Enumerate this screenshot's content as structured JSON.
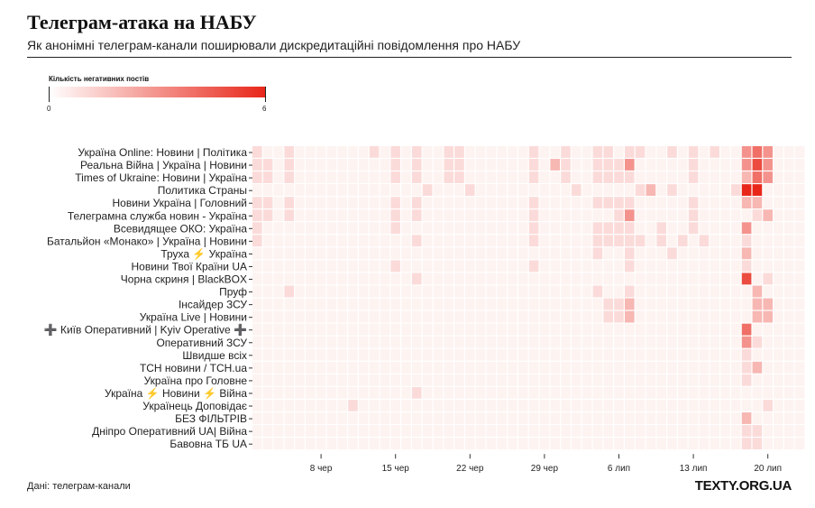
{
  "header": {
    "title": "Телеграм-атака на НАБУ",
    "subtitle": "Як анонімні телеграм-канали поширювали дискредитаційні повідомлення про НАБУ"
  },
  "legend": {
    "title": "Кількість негативних постів",
    "min_label": "0",
    "max_label": "6"
  },
  "footer": {
    "source": "Дані: телеграм-канали",
    "brand": "TEXTY.ORG.UA"
  },
  "colors": {
    "low": "#ffffff",
    "high": "#e8271a",
    "grid": "#ffffff"
  },
  "chart_data": {
    "type": "heatmap",
    "x": [
      "2 чер",
      "3 чер",
      "4 чер",
      "5 чер",
      "6 чер",
      "7 чер",
      "8 чер",
      "9 чер",
      "10 чер",
      "11 чер",
      "12 чер",
      "13 чер",
      "14 чер",
      "15 чер",
      "16 чер",
      "17 чер",
      "18 чер",
      "19 чер",
      "20 чер",
      "21 чер",
      "22 чер",
      "23 чер",
      "24 чер",
      "25 чер",
      "26 чер",
      "27 чер",
      "28 чер",
      "29 чер",
      "30 чер",
      "1 лип",
      "2 лип",
      "3 лип",
      "4 лип",
      "5 лип",
      "6 лип",
      "7 лип",
      "8 лип",
      "9 лип",
      "10 лип",
      "11 лип",
      "12 лип",
      "13 лип",
      "14 лип",
      "15 лип",
      "16 лип",
      "17 лип",
      "18 лип",
      "19 лип",
      "20 лип",
      "21 лип",
      "22 лип",
      "23 лип"
    ],
    "x_tick_labels": [
      "8 чер",
      "15 чер",
      "22 чер",
      "29 чер",
      "6 лип",
      "13 лип",
      "20 лип"
    ],
    "y": [
      "Україна Online: Новини | Політика",
      "Реальна Війна | Україна | Новини",
      "Times of Ukraine: Новини | Україна",
      "Политика Страны",
      "Новини Україна | Головний",
      "Телеграмна служба новин - Україна",
      "Всевидящее ОКО: Україна",
      "Батальйон «Монако» | Україна | Новини",
      "Труха ⚡ Україна",
      "Новини Твої Країни UA",
      "Чорна скриня | BlackBOX",
      "Пруф",
      "Інсайдер ЗСУ",
      "Україна Live | Новини",
      "➕ Київ Оперативний | Kyiv Operative ➕",
      "Оперативний ЗСУ",
      "Швидше всіх",
      "ТСН новини / TCH.ua",
      "Україна про Головне",
      "Україна ⚡ Новини ⚡ Війна",
      "Українець Доповідає",
      "БЕЗ ФІЛЬТРІВ",
      "Дніпро Оперативний UA| Війна",
      "Бавовна ТБ UA"
    ],
    "value_range": [
      0,
      6
    ],
    "cells": [
      [
        0,
        0,
        1
      ],
      [
        0,
        3,
        1
      ],
      [
        0,
        11,
        1
      ],
      [
        0,
        13,
        1
      ],
      [
        0,
        15,
        1
      ],
      [
        0,
        18,
        1
      ],
      [
        0,
        19,
        1
      ],
      [
        0,
        26,
        1
      ],
      [
        0,
        29,
        1
      ],
      [
        0,
        32,
        1
      ],
      [
        0,
        33,
        1
      ],
      [
        0,
        35,
        1
      ],
      [
        0,
        36,
        1
      ],
      [
        0,
        39,
        1
      ],
      [
        0,
        41,
        1
      ],
      [
        0,
        43,
        1
      ],
      [
        0,
        46,
        3
      ],
      [
        0,
        47,
        4
      ],
      [
        0,
        48,
        3
      ],
      [
        1,
        0,
        1
      ],
      [
        1,
        1,
        1
      ],
      [
        1,
        3,
        1
      ],
      [
        1,
        13,
        1
      ],
      [
        1,
        15,
        1
      ],
      [
        1,
        18,
        1
      ],
      [
        1,
        19,
        1
      ],
      [
        1,
        26,
        1
      ],
      [
        1,
        28,
        2
      ],
      [
        1,
        29,
        1
      ],
      [
        1,
        32,
        1
      ],
      [
        1,
        33,
        1
      ],
      [
        1,
        34,
        1
      ],
      [
        1,
        35,
        3
      ],
      [
        1,
        41,
        1
      ],
      [
        1,
        46,
        3
      ],
      [
        1,
        47,
        5
      ],
      [
        1,
        48,
        3
      ],
      [
        2,
        0,
        1
      ],
      [
        2,
        1,
        1
      ],
      [
        2,
        3,
        1
      ],
      [
        2,
        13,
        1
      ],
      [
        2,
        15,
        1
      ],
      [
        2,
        18,
        1
      ],
      [
        2,
        19,
        1
      ],
      [
        2,
        26,
        1
      ],
      [
        2,
        29,
        1
      ],
      [
        2,
        32,
        1
      ],
      [
        2,
        33,
        1
      ],
      [
        2,
        34,
        1
      ],
      [
        2,
        35,
        1
      ],
      [
        2,
        41,
        1
      ],
      [
        2,
        46,
        2
      ],
      [
        2,
        47,
        4
      ],
      [
        2,
        48,
        3
      ],
      [
        3,
        16,
        1
      ],
      [
        3,
        20,
        1
      ],
      [
        3,
        30,
        1
      ],
      [
        3,
        36,
        1
      ],
      [
        3,
        37,
        2
      ],
      [
        3,
        39,
        1
      ],
      [
        3,
        45,
        1
      ],
      [
        3,
        46,
        6
      ],
      [
        3,
        47,
        6
      ],
      [
        4,
        0,
        1
      ],
      [
        4,
        1,
        1
      ],
      [
        4,
        3,
        1
      ],
      [
        4,
        13,
        1
      ],
      [
        4,
        15,
        1
      ],
      [
        4,
        26,
        1
      ],
      [
        4,
        32,
        1
      ],
      [
        4,
        33,
        1
      ],
      [
        4,
        34,
        1
      ],
      [
        4,
        35,
        1
      ],
      [
        4,
        41,
        1
      ],
      [
        4,
        46,
        2
      ],
      [
        4,
        47,
        2
      ],
      [
        5,
        0,
        1
      ],
      [
        5,
        1,
        1
      ],
      [
        5,
        3,
        1
      ],
      [
        5,
        13,
        1
      ],
      [
        5,
        15,
        1
      ],
      [
        5,
        26,
        1
      ],
      [
        5,
        34,
        1
      ],
      [
        5,
        35,
        3
      ],
      [
        5,
        41,
        1
      ],
      [
        5,
        47,
        1
      ],
      [
        5,
        48,
        2
      ],
      [
        6,
        0,
        1
      ],
      [
        6,
        13,
        1
      ],
      [
        6,
        26,
        1
      ],
      [
        6,
        32,
        1
      ],
      [
        6,
        33,
        1
      ],
      [
        6,
        34,
        1
      ],
      [
        6,
        35,
        1
      ],
      [
        6,
        38,
        1
      ],
      [
        6,
        41,
        1
      ],
      [
        6,
        46,
        3
      ],
      [
        7,
        0,
        1
      ],
      [
        7,
        15,
        1
      ],
      [
        7,
        26,
        1
      ],
      [
        7,
        32,
        1
      ],
      [
        7,
        33,
        1
      ],
      [
        7,
        34,
        1
      ],
      [
        7,
        35,
        1
      ],
      [
        7,
        36,
        1
      ],
      [
        7,
        38,
        1
      ],
      [
        7,
        40,
        1
      ],
      [
        7,
        42,
        1
      ],
      [
        7,
        46,
        1
      ],
      [
        8,
        32,
        1
      ],
      [
        8,
        35,
        1
      ],
      [
        8,
        39,
        1
      ],
      [
        8,
        46,
        2
      ],
      [
        9,
        13,
        1
      ],
      [
        9,
        26,
        1
      ],
      [
        9,
        35,
        1
      ],
      [
        9,
        46,
        1
      ],
      [
        10,
        15,
        1
      ],
      [
        10,
        46,
        5
      ],
      [
        10,
        48,
        1
      ],
      [
        11,
        3,
        1
      ],
      [
        11,
        32,
        1
      ],
      [
        11,
        35,
        1
      ],
      [
        11,
        47,
        2
      ],
      [
        12,
        33,
        1
      ],
      [
        12,
        34,
        1
      ],
      [
        12,
        35,
        2
      ],
      [
        12,
        47,
        2
      ],
      [
        12,
        48,
        2
      ],
      [
        13,
        33,
        1
      ],
      [
        13,
        34,
        1
      ],
      [
        13,
        35,
        2
      ],
      [
        13,
        47,
        2
      ],
      [
        13,
        48,
        2
      ],
      [
        14,
        46,
        4
      ],
      [
        15,
        46,
        3
      ],
      [
        15,
        47,
        1
      ],
      [
        16,
        46,
        1
      ],
      [
        17,
        46,
        1
      ],
      [
        17,
        47,
        2
      ],
      [
        18,
        46,
        1
      ],
      [
        19,
        15,
        1
      ],
      [
        20,
        9,
        1
      ],
      [
        20,
        48,
        1
      ],
      [
        21,
        46,
        2
      ],
      [
        22,
        46,
        1
      ],
      [
        22,
        47,
        1
      ],
      [
        23,
        46,
        1
      ],
      [
        23,
        47,
        1
      ]
    ]
  }
}
